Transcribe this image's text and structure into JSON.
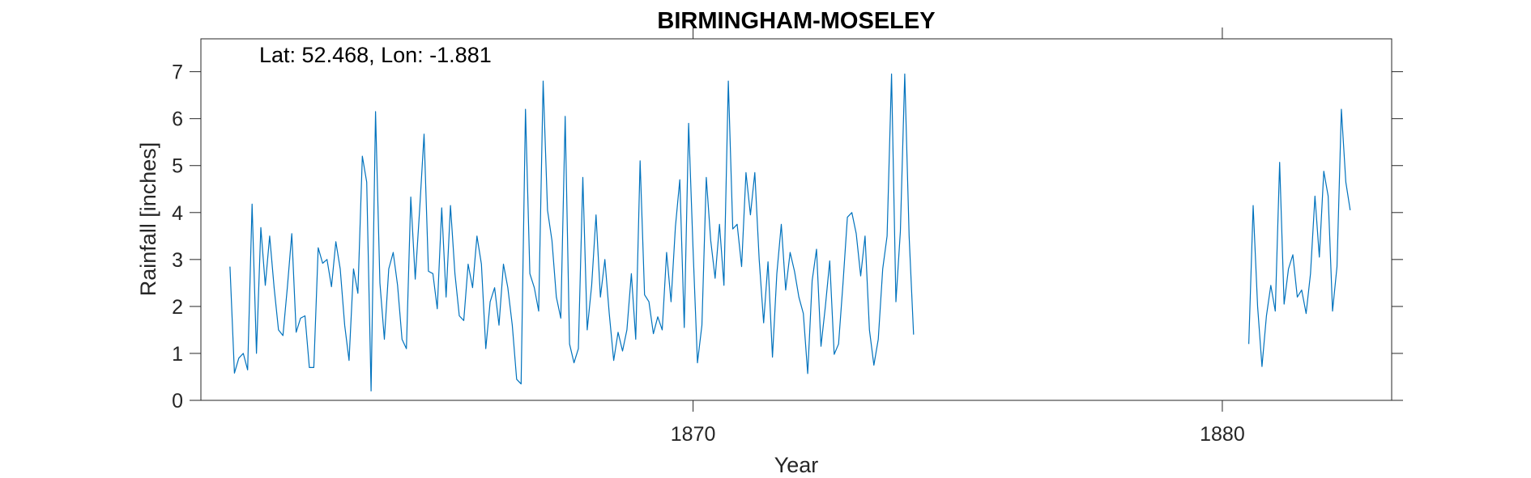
{
  "chart_data": {
    "type": "line",
    "title": "BIRMINGHAM-MOSELEY",
    "xlabel": "Year",
    "ylabel": "Rainfall [inches]",
    "annotation": "Lat: 52.468, Lon: -1.881",
    "xlim": [
      1860.7,
      1883.2
    ],
    "ylim": [
      0,
      7.7
    ],
    "x_ticks": [
      1870,
      1880
    ],
    "x_tick_labels": [
      "1870",
      "1880"
    ],
    "y_ticks": [
      0,
      1,
      2,
      3,
      4,
      5,
      6,
      7
    ],
    "y_tick_labels": [
      "0",
      "1",
      "2",
      "3",
      "4",
      "5",
      "6",
      "7"
    ],
    "grid": false,
    "line_color": "#0072BD",
    "series": [
      {
        "segments": [
          {
            "start": 1861.25,
            "step": 0.08333,
            "values": [
              2.85,
              0.58,
              0.9,
              1.0,
              0.65,
              4.18,
              1.0,
              3.68,
              2.45,
              3.5,
              2.4,
              1.5,
              1.38,
              2.4,
              3.55,
              1.45,
              1.75,
              1.8,
              0.7,
              0.7,
              3.25,
              2.92,
              3.0,
              2.42,
              3.38,
              2.8,
              1.6,
              0.85,
              2.8,
              2.28,
              5.2,
              4.65,
              0.2,
              6.15,
              2.5,
              1.3,
              2.8,
              3.15,
              2.45,
              1.3,
              1.1,
              4.33,
              2.58,
              4.05,
              5.67,
              2.75,
              2.7,
              1.95,
              4.1,
              2.2,
              4.15,
              2.7,
              1.8,
              1.7,
              2.9,
              2.4,
              3.5,
              2.9,
              1.1,
              2.1,
              2.4,
              1.6,
              2.9,
              2.4,
              1.6,
              0.45,
              0.35,
              6.2,
              2.7,
              2.4,
              1.9,
              6.8,
              4.05,
              3.4,
              2.2,
              1.75,
              6.05,
              1.2,
              0.8,
              1.1,
              4.75,
              1.5,
              2.45,
              3.95,
              2.2,
              3.0,
              1.85,
              0.85,
              1.45,
              1.05,
              1.5,
              2.7,
              1.3,
              5.1,
              2.25,
              2.1,
              1.42,
              1.78,
              1.5,
              3.15,
              2.1,
              3.7,
              4.7,
              1.55,
              5.9,
              3.2,
              0.8,
              1.6,
              4.75,
              3.4,
              2.6,
              3.75,
              2.45,
              6.8,
              3.65,
              3.75,
              2.85,
              4.85,
              3.95,
              4.85,
              3.0,
              1.65,
              2.95,
              0.92,
              2.7,
              3.75,
              2.35,
              3.15,
              2.75,
              2.2,
              1.85,
              0.57,
              2.55,
              3.22,
              1.15,
              2.0,
              2.97,
              0.98,
              1.2,
              2.5,
              3.9,
              4.0,
              3.55,
              2.65,
              3.5,
              1.5,
              0.75,
              1.3,
              2.8,
              3.5,
              6.95,
              2.1,
              3.6,
              6.95,
              3.5,
              1.4
            ]
          },
          {
            "start": 1880.5,
            "step": 0.08333,
            "values": [
              1.2,
              4.15,
              2.0,
              0.72,
              1.8,
              2.45,
              1.9,
              5.07,
              2.05,
              2.8,
              3.1,
              2.2,
              2.35,
              1.85,
              2.7,
              4.35,
              3.05,
              4.88,
              4.35,
              1.9,
              2.85,
              6.2,
              4.65,
              4.05
            ]
          }
        ]
      }
    ]
  }
}
